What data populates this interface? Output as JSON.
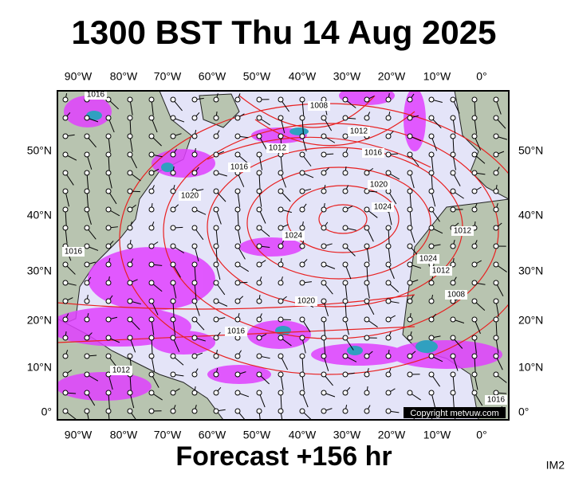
{
  "title": "1300 BST Thu 14 Aug 2025",
  "longitude_labels": [
    "90°W",
    "80°W",
    "70°W",
    "60°W",
    "50°W",
    "40°W",
    "30°W",
    "20°W",
    "10°W",
    "0°"
  ],
  "latitude_labels": [
    "50°N",
    "40°N",
    "30°N",
    "20°N",
    "10°N",
    "0°"
  ],
  "isobar_labels": [
    "1016",
    "1008",
    "1012",
    "1012",
    "1016",
    "1016",
    "1020",
    "1020",
    "1024",
    "1024",
    "1016",
    "1012",
    "1024",
    "1012",
    "1008",
    "1020",
    "1016",
    "1012",
    "1016"
  ],
  "forecast": "Forecast +156 hr",
  "copyright": "Copyright metvuw.com",
  "image_id": "IM2"
}
